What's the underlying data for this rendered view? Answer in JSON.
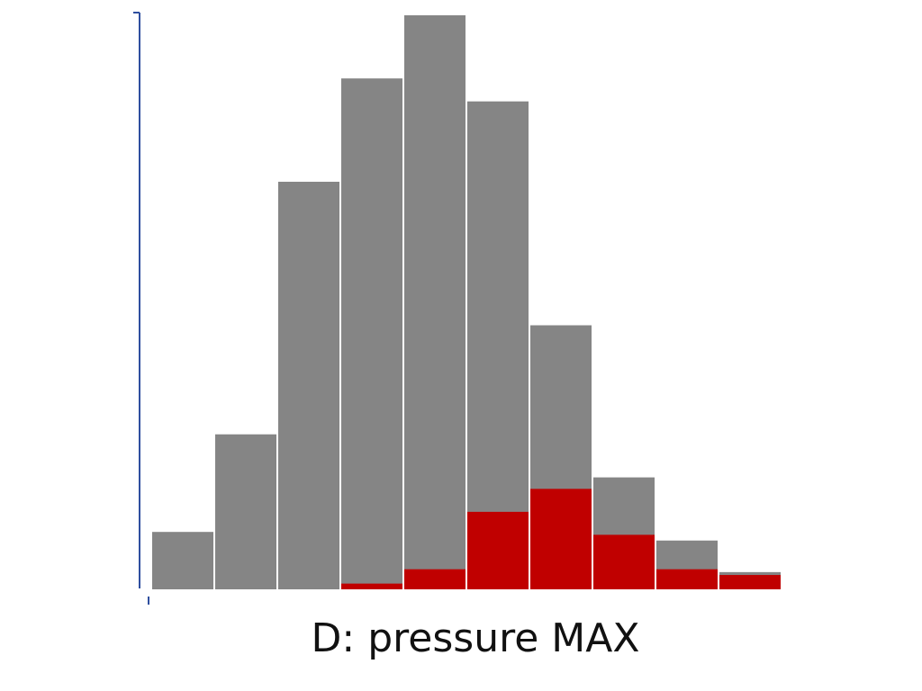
{
  "chart_data": {
    "type": "bar",
    "stacking": "overlay",
    "xlabel": "D: pressure MAX",
    "ylabel": "",
    "title": "",
    "bins": 10,
    "ylim": [
      0,
      100
    ],
    "grid": false,
    "legend": "none",
    "series": [
      {
        "color": "#858585",
        "values": [
          10,
          27,
          71,
          89,
          100,
          85,
          46,
          19.5,
          8.5,
          3
        ]
      },
      {
        "color": "#c00000",
        "values": [
          0,
          0,
          0,
          1,
          3.5,
          13.5,
          17.5,
          9.5,
          3.5,
          2.5
        ]
      }
    ]
  }
}
